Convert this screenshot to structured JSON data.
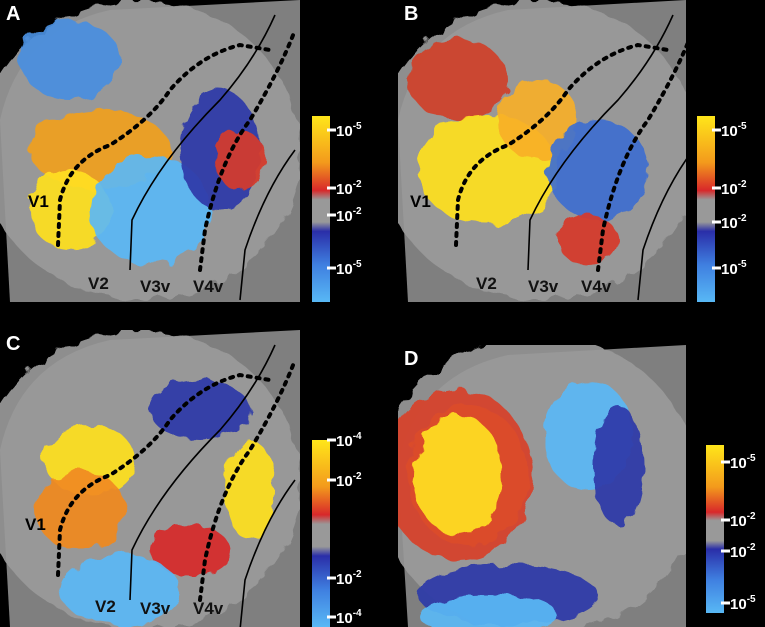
{
  "panels": [
    {
      "label": "A",
      "areas": [
        "V1",
        "V2",
        "V3v",
        "V4v"
      ],
      "colorbar": {
        "ticks": [
          {
            "base": "10",
            "exp": "-5"
          },
          {
            "base": "10",
            "exp": "-2"
          },
          {
            "base": "10",
            "exp": "-2"
          },
          {
            "base": "10",
            "exp": "-5"
          }
        ]
      }
    },
    {
      "label": "B",
      "areas": [
        "V1",
        "V2",
        "V3v",
        "V4v"
      ],
      "colorbar": {
        "ticks": [
          {
            "base": "10",
            "exp": "-5"
          },
          {
            "base": "10",
            "exp": "-2"
          },
          {
            "base": "10",
            "exp": "-2"
          },
          {
            "base": "10",
            "exp": "-5"
          }
        ]
      }
    },
    {
      "label": "C",
      "areas": [
        "V1",
        "V2",
        "V3v",
        "V4v"
      ],
      "colorbar": {
        "ticks": [
          {
            "base": "10",
            "exp": "-4"
          },
          {
            "base": "10",
            "exp": "-2"
          },
          {
            "base": "10",
            "exp": "-2"
          },
          {
            "base": "10",
            "exp": "-4"
          }
        ]
      }
    },
    {
      "label": "D",
      "colorbar": {
        "ticks": [
          {
            "base": "10",
            "exp": "-5"
          },
          {
            "base": "10",
            "exp": "-2"
          },
          {
            "base": "10",
            "exp": "-2"
          },
          {
            "base": "10",
            "exp": "-5"
          }
        ]
      }
    }
  ]
}
